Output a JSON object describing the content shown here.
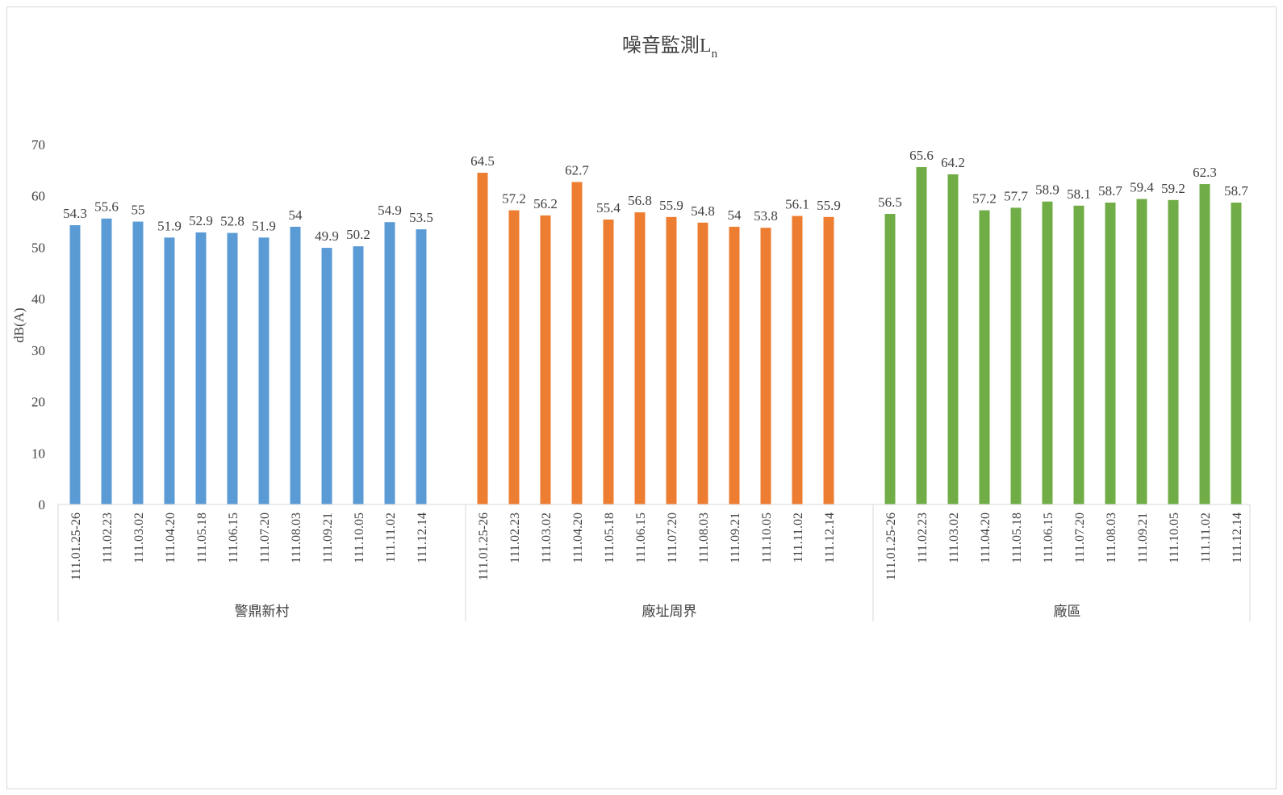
{
  "chart_data": {
    "type": "bar",
    "title": "噪音監測L",
    "title_subscript": "n",
    "ylabel": "dB(A)",
    "xlabel": "",
    "ylim": [
      0,
      70
    ],
    "yticks": [
      0,
      10,
      20,
      30,
      40,
      50,
      60,
      70
    ],
    "grid": false,
    "legend": "none",
    "categories": [
      "111.01.25-26",
      "111.02.23",
      "111.03.02",
      "111.04.20",
      "111.05.18",
      "111.06.15",
      "111.07.20",
      "111.08.03",
      "111.09.21",
      "111.10.05",
      "111.11.02",
      "111.12.14"
    ],
    "groups": [
      {
        "name": "警鼎新村",
        "color": "#5b9bd5",
        "values": [
          54.3,
          55.6,
          55,
          51.9,
          52.9,
          52.8,
          51.9,
          54,
          49.9,
          50.2,
          54.9,
          53.5
        ]
      },
      {
        "name": "廠址周界",
        "color": "#ed7d31",
        "values": [
          64.5,
          57.2,
          56.2,
          62.7,
          55.4,
          56.8,
          55.9,
          54.8,
          54,
          53.8,
          56.1,
          55.9
        ]
      },
      {
        "name": "廠區",
        "color": "#70ad47",
        "values": [
          56.5,
          65.6,
          64.2,
          57.2,
          57.7,
          58.9,
          58.1,
          58.7,
          59.4,
          59.2,
          62.3,
          58.7
        ]
      }
    ]
  }
}
